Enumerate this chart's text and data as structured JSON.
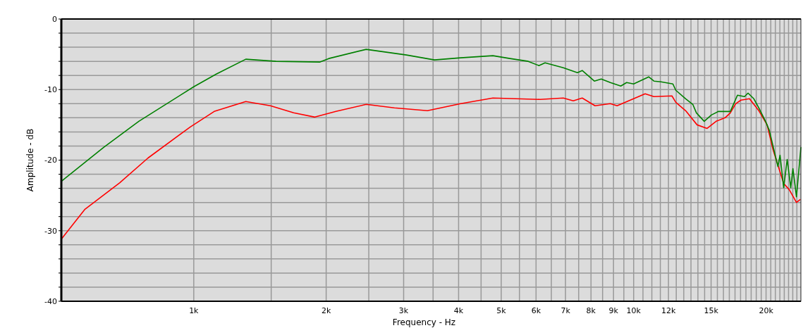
{
  "chart_data": {
    "type": "line",
    "xlabel": "Frequency - Hz",
    "ylabel": "Amplitude - dB",
    "log": "x",
    "grid": true,
    "xlim": [
      500,
      24000
    ],
    "ylim": [
      -40,
      0
    ],
    "xticks": [
      {
        "value": 1000,
        "label": "1k"
      },
      {
        "value": 1500,
        "label": null
      },
      {
        "value": 2000,
        "label": "2k"
      },
      {
        "value": 2500,
        "label": null
      },
      {
        "value": 3000,
        "label": "3k"
      },
      {
        "value": 3500,
        "label": null
      },
      {
        "value": 4000,
        "label": "4k"
      },
      {
        "value": 4500,
        "label": null
      },
      {
        "value": 5000,
        "label": "5k"
      },
      {
        "value": 5500,
        "label": null
      },
      {
        "value": 6000,
        "label": "6k"
      },
      {
        "value": 6500,
        "label": null
      },
      {
        "value": 7000,
        "label": "7k"
      },
      {
        "value": 7500,
        "label": null
      },
      {
        "value": 8000,
        "label": "8k"
      },
      {
        "value": 8500,
        "label": null
      },
      {
        "value": 9000,
        "label": "9k"
      },
      {
        "value": 9500,
        "label": null
      },
      {
        "value": 10000,
        "label": "10k"
      },
      {
        "value": 10500,
        "label": null
      },
      {
        "value": 11000,
        "label": null
      },
      {
        "value": 11500,
        "label": null
      },
      {
        "value": 12000,
        "label": "12k"
      },
      {
        "value": 12500,
        "label": null
      },
      {
        "value": 13000,
        "label": null
      },
      {
        "value": 13500,
        "label": null
      },
      {
        "value": 14000,
        "label": null
      },
      {
        "value": 14500,
        "label": null
      },
      {
        "value": 15000,
        "label": "15k"
      },
      {
        "value": 15500,
        "label": null
      },
      {
        "value": 16000,
        "label": null
      },
      {
        "value": 16500,
        "label": null
      },
      {
        "value": 17000,
        "label": null
      },
      {
        "value": 17500,
        "label": null
      },
      {
        "value": 18000,
        "label": null
      },
      {
        "value": 18500,
        "label": null
      },
      {
        "value": 19000,
        "label": null
      },
      {
        "value": 19500,
        "label": null
      },
      {
        "value": 20000,
        "label": "20k"
      },
      {
        "value": 20500,
        "label": null
      },
      {
        "value": 21000,
        "label": null
      },
      {
        "value": 21500,
        "label": null
      },
      {
        "value": 22000,
        "label": null
      },
      {
        "value": 22500,
        "label": null
      },
      {
        "value": 23000,
        "label": null
      },
      {
        "value": 23500,
        "label": null
      }
    ],
    "yticks": [
      0,
      {
        "value": -2,
        "label": null
      },
      {
        "value": -4,
        "label": null
      },
      {
        "value": -6,
        "label": null
      },
      {
        "value": -8,
        "label": null
      },
      -10,
      {
        "value": -12,
        "label": null
      },
      {
        "value": -14,
        "label": null
      },
      {
        "value": -16,
        "label": null
      },
      {
        "value": -18,
        "label": null
      },
      -20,
      {
        "value": -22,
        "label": null
      },
      {
        "value": -24,
        "label": null
      },
      {
        "value": -26,
        "label": null
      },
      {
        "value": -28,
        "label": null
      },
      -30,
      {
        "value": -32,
        "label": null
      },
      {
        "value": -34,
        "label": null
      },
      {
        "value": -36,
        "label": null
      },
      {
        "value": -38,
        "label": null
      },
      -40
    ],
    "series": [
      {
        "color": "#ff0000",
        "x": [
          500,
          565,
          679,
          787,
          982,
          1113,
          1313,
          1494,
          1687,
          1885,
          2105,
          2466,
          2858,
          3398,
          4045,
          4787,
          6130,
          6920,
          7290,
          7640,
          8170,
          8850,
          9170,
          10620,
          11120,
          12220,
          12470,
          13130,
          13940,
          14690,
          15400,
          16140,
          16590,
          17060,
          17540,
          18340,
          19260,
          20110,
          20740,
          21930,
          22590,
          23450,
          23900
        ],
        "values": [
          -31.2,
          -27.0,
          -23.2,
          -19.7,
          -15.3,
          -13.1,
          -11.7,
          -12.3,
          -13.3,
          -13.9,
          -13.1,
          -12.1,
          -12.6,
          -13.0,
          -12.0,
          -11.2,
          -11.4,
          -11.2,
          -11.6,
          -11.2,
          -12.3,
          -12.0,
          -12.3,
          -10.6,
          -11.0,
          -10.9,
          -11.8,
          -13.0,
          -15.0,
          -15.5,
          -14.5,
          -14.0,
          -13.3,
          -12.0,
          -11.5,
          -11.3,
          -13.0,
          -15.0,
          -18.5,
          -23.3,
          -24.2,
          -26.0,
          -25.6
        ]
      },
      {
        "color": "#008000",
        "x": [
          500,
          624,
          750,
          1000,
          1125,
          1313,
          1538,
          1933,
          2028,
          2466,
          3044,
          3526,
          4045,
          4787,
          5232,
          5760,
          6090,
          6290,
          6920,
          7450,
          7640,
          8140,
          8440,
          8850,
          9350,
          9640,
          10000,
          10820,
          11120,
          11540,
          12280,
          12470,
          13130,
          13630,
          13890,
          14470,
          15020,
          15580,
          16590,
          17220,
          17870,
          18200,
          18760,
          19260,
          19980,
          20350,
          20740,
          21280,
          21520,
          21930,
          22340,
          22760,
          23020,
          23450,
          24000
        ],
        "values": [
          -23.0,
          -18.2,
          -14.5,
          -9.6,
          -7.8,
          -5.7,
          -6.0,
          -6.1,
          -5.6,
          -4.3,
          -5.1,
          -5.8,
          -5.5,
          -5.2,
          -5.6,
          -6.0,
          -6.6,
          -6.2,
          -6.9,
          -7.6,
          -7.3,
          -8.8,
          -8.5,
          -9.0,
          -9.5,
          -9.0,
          -9.2,
          -8.2,
          -8.8,
          -8.9,
          -9.2,
          -10.1,
          -11.3,
          -12.1,
          -13.3,
          -14.5,
          -13.6,
          -13.1,
          -13.1,
          -10.8,
          -11.0,
          -10.5,
          -11.3,
          -12.6,
          -14.6,
          -15.8,
          -18.0,
          -20.9,
          -19.3,
          -23.9,
          -19.9,
          -23.9,
          -21.2,
          -25.2,
          -18.2
        ]
      }
    ]
  }
}
